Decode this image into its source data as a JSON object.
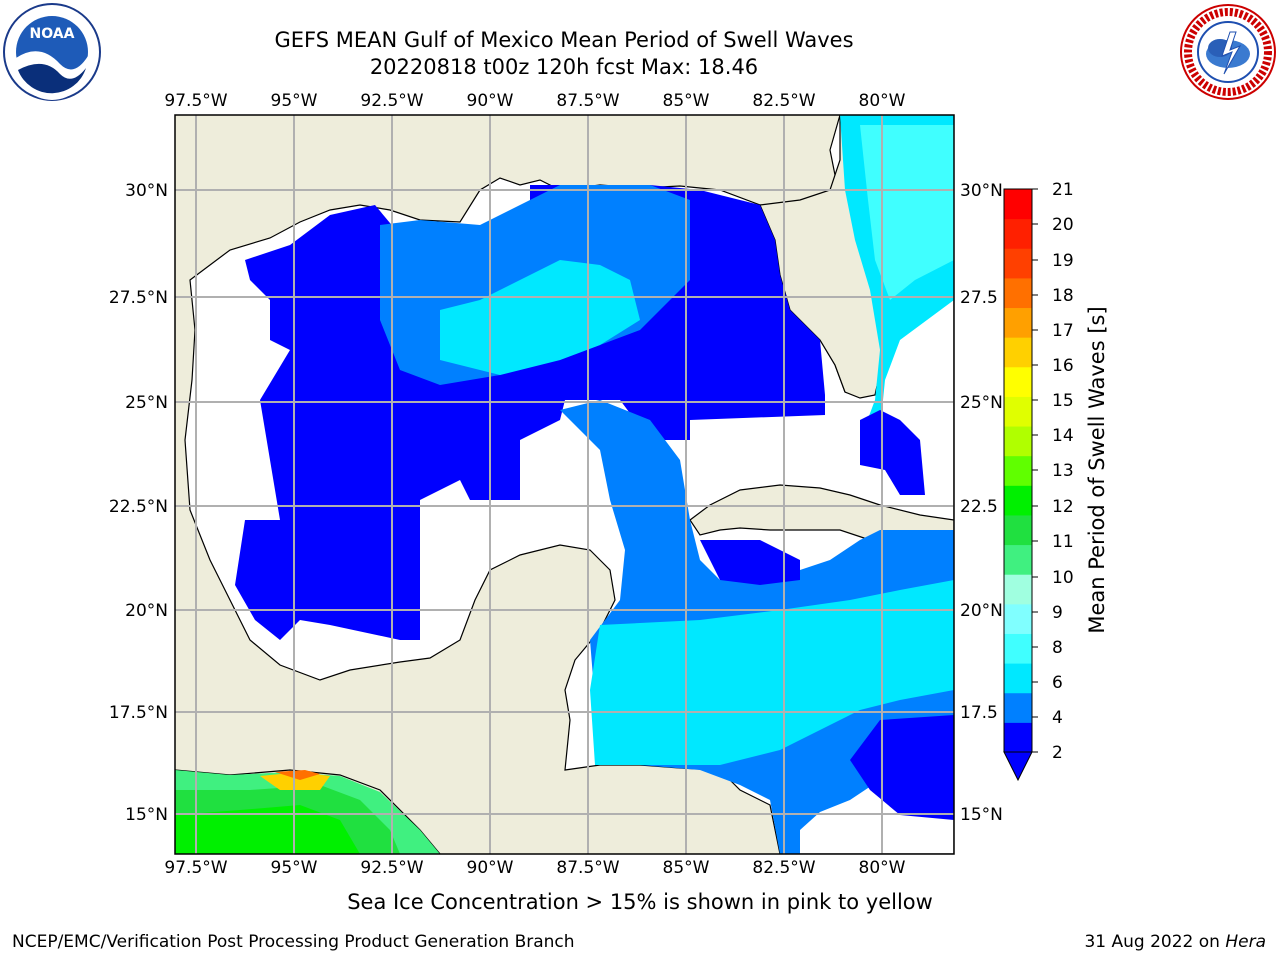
{
  "header": {
    "title_line1": "GEFS MEAN Gulf of Mexico Mean Period of Swell Waves",
    "title_line2": "20220818 t00z 120h fcst   Max: 18.46"
  },
  "logos": {
    "left": {
      "name": "noaa-logo",
      "text": "NOAA",
      "ring_text": "NATIONAL OCEANIC AND ATMOSPHERIC ADMINISTRATION · U.S. DEPARTMENT OF COMMERCE"
    },
    "right": {
      "name": "nws-logo",
      "ring_text": "NATIONAL WEATHER SERVICE"
    }
  },
  "map": {
    "lon_labels": [
      "97.5°W",
      "95°W",
      "92.5°W",
      "90°W",
      "87.5°W",
      "85°W",
      "82.5°W",
      "80°W"
    ],
    "lat_labels_left": [
      "30°N",
      "27.5°N",
      "25°N",
      "22.5°N",
      "20°N",
      "17.5°N",
      "15°N"
    ],
    "lat_labels_right": [
      "30°N",
      "27.5",
      "25°N",
      "22.5",
      "20°N",
      "17.5",
      "15°N"
    ],
    "land_color": "#eeeddb",
    "grid_color": "#b0b0b0"
  },
  "colorbar": {
    "label": "Mean Period of Swell Waves [s]",
    "ticks": [
      "2",
      "4",
      "6",
      "8",
      "9",
      "10",
      "11",
      "12",
      "13",
      "14",
      "15",
      "16",
      "17",
      "18",
      "19",
      "20",
      "21"
    ],
    "colors": [
      "#0000ff",
      "#0080ff",
      "#00e8ff",
      "#40ffff",
      "#80ffff",
      "#a0ffe0",
      "#40f080",
      "#20e040",
      "#00f000",
      "#60ff00",
      "#b0ff00",
      "#e0ff00",
      "#ffff00",
      "#ffd000",
      "#ffa000",
      "#ff7000",
      "#ff4000",
      "#ff2000",
      "#ff0000"
    ],
    "extend_color": "#0000ff"
  },
  "subtitle": "Sea Ice Concentration > 15% is shown in pink to yellow",
  "footer": {
    "left": "NCEP/EMC/Verification Post Processing Product Generation Branch",
    "right_prefix": "31 Aug 2022 on ",
    "right_italic": "Hera"
  }
}
